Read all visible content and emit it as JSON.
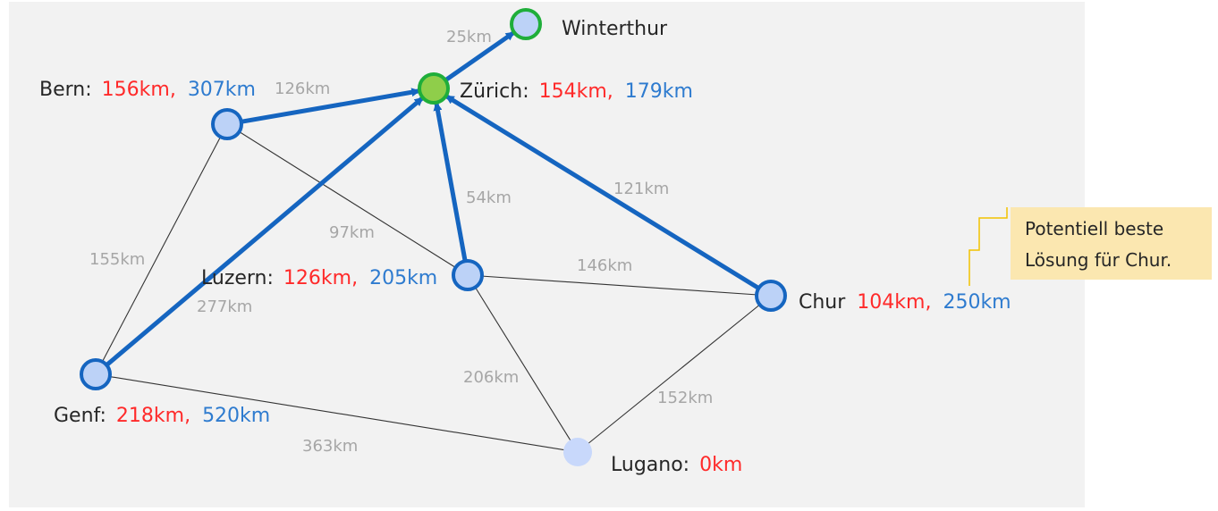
{
  "colors": {
    "edge_thin": "#333333",
    "edge_bold": "#1565c0",
    "node_fill": "#bcd2f7",
    "node_stroke": "#1565c0",
    "target_fill": "#8fce4a",
    "target_stroke": "#1fae3a",
    "start_fill": "#c8d8fb",
    "dist_red": "#ff2a2a",
    "dist_blue": "#2e7bcf",
    "note_bg": "#fbe7b0"
  },
  "nodes": [
    {
      "id": "winterthur",
      "name": "Winterthur",
      "dist_red": "",
      "dist_blue": "",
      "kind": "visited-green-ring"
    },
    {
      "id": "zurich",
      "name": "Zürich:",
      "dist_red": "154km,",
      "dist_blue": "179km",
      "kind": "target"
    },
    {
      "id": "bern",
      "name": "Bern:",
      "dist_red": "156km,",
      "dist_blue": "307km",
      "kind": "normal"
    },
    {
      "id": "luzern",
      "name": "Luzern:",
      "dist_red": "126km,",
      "dist_blue": "205km",
      "kind": "normal"
    },
    {
      "id": "chur",
      "name": "Chur",
      "dist_red": "104km,",
      "dist_blue": "250km",
      "kind": "normal"
    },
    {
      "id": "genf",
      "name": "Genf:",
      "dist_red": "218km,",
      "dist_blue": "520km",
      "kind": "normal"
    },
    {
      "id": "lugano",
      "name": "Lugano:",
      "dist_red": "0km",
      "dist_blue": "",
      "kind": "start"
    }
  ],
  "edges": [
    {
      "id": "bern-genf",
      "label": "155km",
      "bold": false
    },
    {
      "id": "bern-luzern",
      "label": "97km",
      "bold": false
    },
    {
      "id": "luzern-chur",
      "label": "146km",
      "bold": false
    },
    {
      "id": "luzern-lugano",
      "label": "206km",
      "bold": false
    },
    {
      "id": "chur-lugano",
      "label": "152km",
      "bold": false
    },
    {
      "id": "genf-lugano",
      "label": "363km",
      "bold": false
    },
    {
      "id": "bern-zurich",
      "label": "126km",
      "bold": true
    },
    {
      "id": "genf-zurich",
      "label": "277km",
      "bold": true
    },
    {
      "id": "luzern-zurich",
      "label": "54km",
      "bold": true
    },
    {
      "id": "chur-zurich",
      "label": "121km",
      "bold": true
    },
    {
      "id": "zurich-winterthur",
      "label": "25km",
      "bold": true
    }
  ],
  "note": {
    "line1": "Potentiell beste",
    "line2": "Lösung für Chur."
  }
}
